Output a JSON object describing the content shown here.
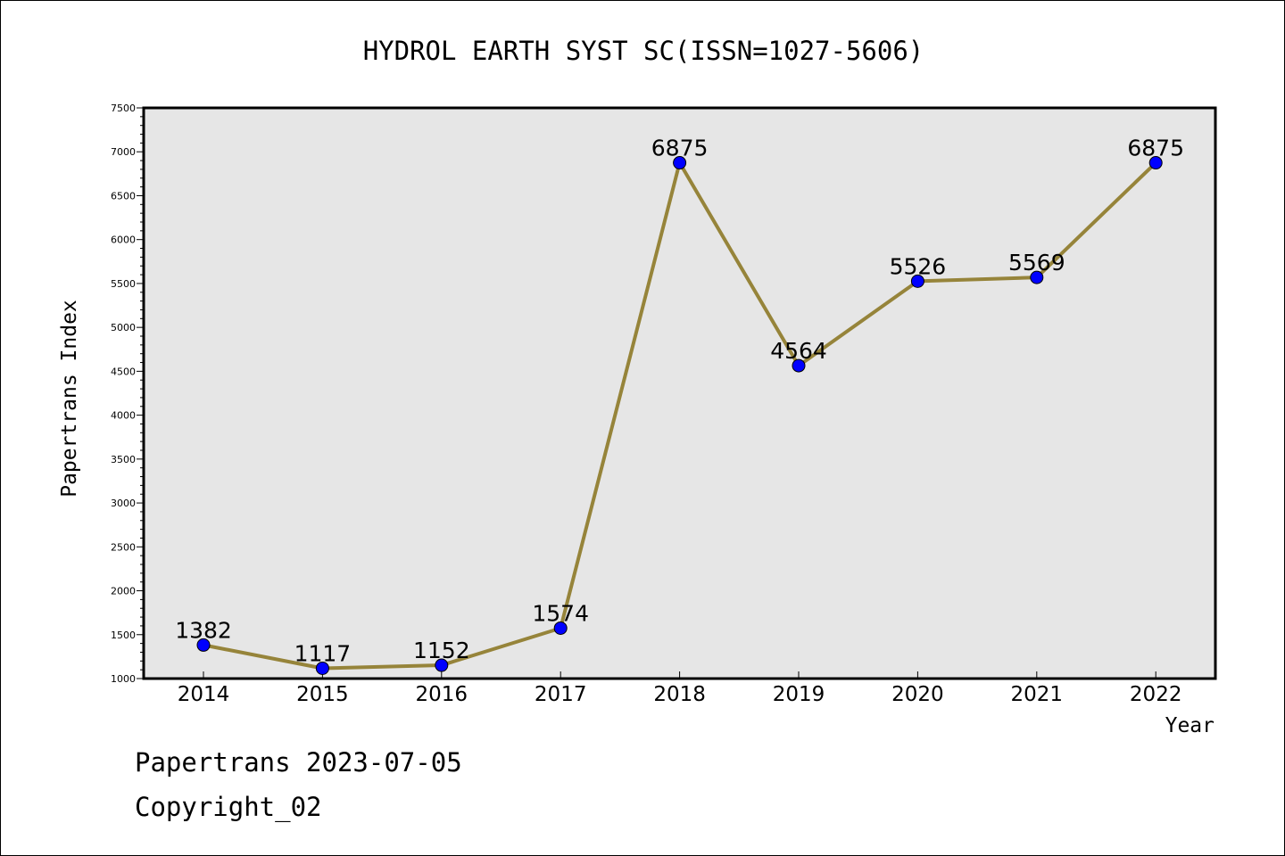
{
  "chart_data": {
    "type": "line",
    "title": "HYDROL EARTH SYST SC(ISSN=1027-5606)",
    "xlabel": "Year",
    "ylabel": "Papertrans Index",
    "categories": [
      "2014",
      "2015",
      "2016",
      "2017",
      "2018",
      "2019",
      "2020",
      "2021",
      "2022"
    ],
    "series": [
      {
        "values": [
          1382,
          1117,
          1152,
          1574,
          6875,
          4564,
          5526,
          5569,
          6875
        ]
      }
    ],
    "data_labels": [
      "1382",
      "1117",
      "1152",
      "1574",
      "6875",
      "4564",
      "5526",
      "5569",
      "6875"
    ],
    "ylim": [
      1000,
      7500
    ],
    "yticks": [
      1000,
      1500,
      2000,
      2500,
      3000,
      3500,
      4000,
      4500,
      5000,
      5500,
      6000,
      6500,
      7000,
      7500
    ],
    "grid": false,
    "legend": "none",
    "colors": {
      "line": "#96843a",
      "marker": "#0000ff",
      "plot_background": "#e6e6e6"
    }
  },
  "footer": {
    "line1": "Papertrans 2023-07-05",
    "line2": "Copyright_02"
  }
}
